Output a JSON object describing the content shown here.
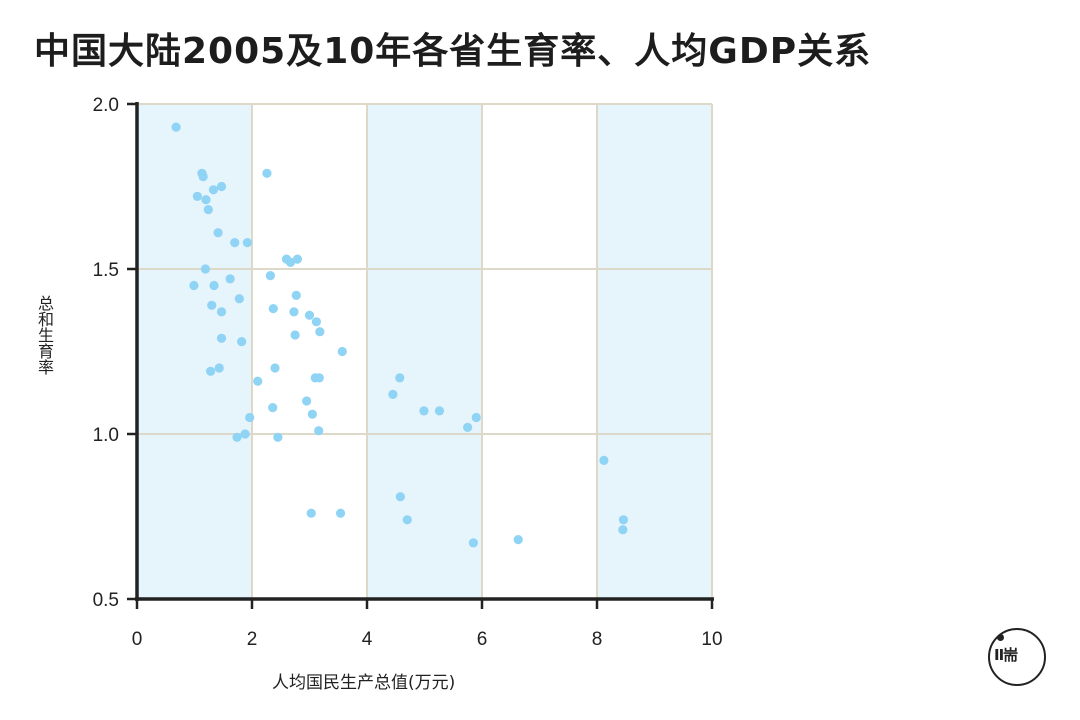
{
  "title": "中国大陆2005及10年各省生育率、人均GDP关系",
  "colors": {
    "band": "#e6f4fb",
    "grid": "#ddd8c8",
    "point": "#8fd3f5",
    "axis": "#222222"
  },
  "logo": {
    "icon": "brand-logo-icon"
  },
  "chart_data": {
    "type": "scatter",
    "title": "中国大陆2005及10年各省生育率、人均GDP关系",
    "xlabel": "人均国民生产总值(万元)",
    "ylabel": "总和生育率",
    "xlim": [
      0,
      10
    ],
    "ylim": [
      0.5,
      2.0
    ],
    "xticks": [
      0,
      2,
      4,
      6,
      8,
      10
    ],
    "yticks": [
      0.5,
      1.0,
      1.5,
      2.0
    ],
    "xtick_labels": [
      "0",
      "2",
      "4",
      "6",
      "8",
      "10"
    ],
    "ytick_labels": [
      "0.5",
      "1.0",
      "1.5",
      "2.0"
    ],
    "grid": true,
    "shaded_x_bands": [
      [
        0,
        2
      ],
      [
        4,
        6
      ],
      [
        8,
        10
      ]
    ],
    "points": [
      {
        "x": 0.68,
        "y": 1.93
      },
      {
        "x": 1.13,
        "y": 1.79
      },
      {
        "x": 1.15,
        "y": 1.78
      },
      {
        "x": 1.05,
        "y": 1.72
      },
      {
        "x": 1.2,
        "y": 1.71
      },
      {
        "x": 1.24,
        "y": 1.68
      },
      {
        "x": 1.33,
        "y": 1.74
      },
      {
        "x": 1.47,
        "y": 1.75
      },
      {
        "x": 1.41,
        "y": 1.61
      },
      {
        "x": 1.7,
        "y": 1.58
      },
      {
        "x": 1.92,
        "y": 1.58
      },
      {
        "x": 1.19,
        "y": 1.5
      },
      {
        "x": 0.99,
        "y": 1.45
      },
      {
        "x": 1.34,
        "y": 1.45
      },
      {
        "x": 1.62,
        "y": 1.47
      },
      {
        "x": 1.3,
        "y": 1.39
      },
      {
        "x": 1.47,
        "y": 1.37
      },
      {
        "x": 1.78,
        "y": 1.41
      },
      {
        "x": 1.47,
        "y": 1.29
      },
      {
        "x": 1.82,
        "y": 1.28
      },
      {
        "x": 1.28,
        "y": 1.19
      },
      {
        "x": 1.43,
        "y": 1.2
      },
      {
        "x": 2.26,
        "y": 1.79
      },
      {
        "x": 2.32,
        "y": 1.48
      },
      {
        "x": 2.6,
        "y": 1.53
      },
      {
        "x": 2.67,
        "y": 1.52
      },
      {
        "x": 2.79,
        "y": 1.53
      },
      {
        "x": 2.37,
        "y": 1.38
      },
      {
        "x": 2.73,
        "y": 1.37
      },
      {
        "x": 2.77,
        "y": 1.42
      },
      {
        "x": 3.0,
        "y": 1.36
      },
      {
        "x": 3.12,
        "y": 1.34
      },
      {
        "x": 3.18,
        "y": 1.31
      },
      {
        "x": 2.75,
        "y": 1.3
      },
      {
        "x": 3.57,
        "y": 1.25
      },
      {
        "x": 2.4,
        "y": 1.2
      },
      {
        "x": 2.1,
        "y": 1.16
      },
      {
        "x": 3.1,
        "y": 1.17
      },
      {
        "x": 3.17,
        "y": 1.17
      },
      {
        "x": 2.95,
        "y": 1.1
      },
      {
        "x": 2.36,
        "y": 1.08
      },
      {
        "x": 3.05,
        "y": 1.06
      },
      {
        "x": 1.96,
        "y": 1.05
      },
      {
        "x": 1.88,
        "y": 1.0
      },
      {
        "x": 1.74,
        "y": 0.99
      },
      {
        "x": 2.45,
        "y": 0.99
      },
      {
        "x": 3.16,
        "y": 1.01
      },
      {
        "x": 3.03,
        "y": 0.76
      },
      {
        "x": 3.54,
        "y": 0.76
      },
      {
        "x": 4.45,
        "y": 1.12
      },
      {
        "x": 4.57,
        "y": 1.17
      },
      {
        "x": 4.99,
        "y": 1.07
      },
      {
        "x": 5.26,
        "y": 1.07
      },
      {
        "x": 5.75,
        "y": 1.02
      },
      {
        "x": 5.9,
        "y": 1.05
      },
      {
        "x": 4.58,
        "y": 0.81
      },
      {
        "x": 4.7,
        "y": 0.74
      },
      {
        "x": 5.85,
        "y": 0.67
      },
      {
        "x": 6.63,
        "y": 0.68
      },
      {
        "x": 8.12,
        "y": 0.92
      },
      {
        "x": 8.46,
        "y": 0.74
      },
      {
        "x": 8.45,
        "y": 0.71
      }
    ]
  }
}
